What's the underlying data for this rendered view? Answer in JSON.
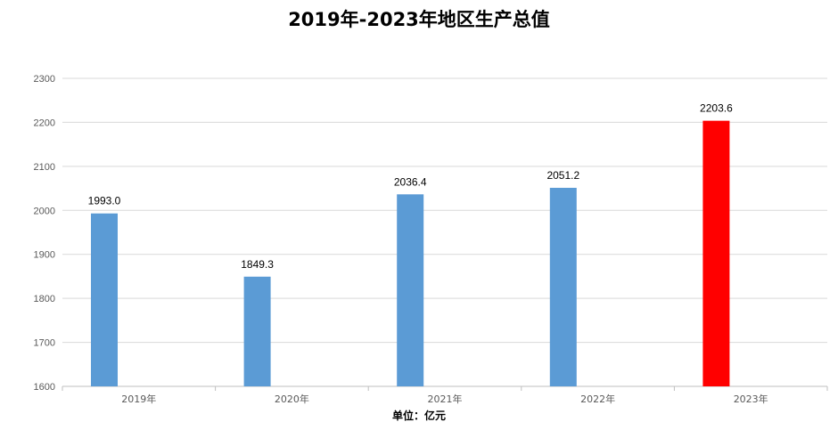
{
  "chart_data": {
    "type": "bar",
    "title": "2019年-2023年地区生产总值",
    "categories": [
      "2019年",
      "2020年",
      "2021年",
      "2022年",
      "2023年"
    ],
    "values": [
      1993.0,
      1849.3,
      2036.4,
      2051.2,
      2203.6
    ],
    "value_labels": [
      "1993.0",
      "1849.3",
      "2036.4",
      "2051.2",
      "2203.6"
    ],
    "bar_colors": [
      "#5B9BD5",
      "#5B9BD5",
      "#5B9BD5",
      "#5B9BD5",
      "#FF0000"
    ],
    "label_colors": [
      "#000000",
      "#000000",
      "#000000",
      "#000000",
      "#C00000"
    ],
    "xlabel": "单位：亿元",
    "ylabel": "",
    "ylim": [
      1600,
      2300
    ],
    "yticks": [
      1600,
      1700,
      1800,
      1900,
      2000,
      2100,
      2200,
      2300
    ],
    "grid": true,
    "legend": "none"
  }
}
